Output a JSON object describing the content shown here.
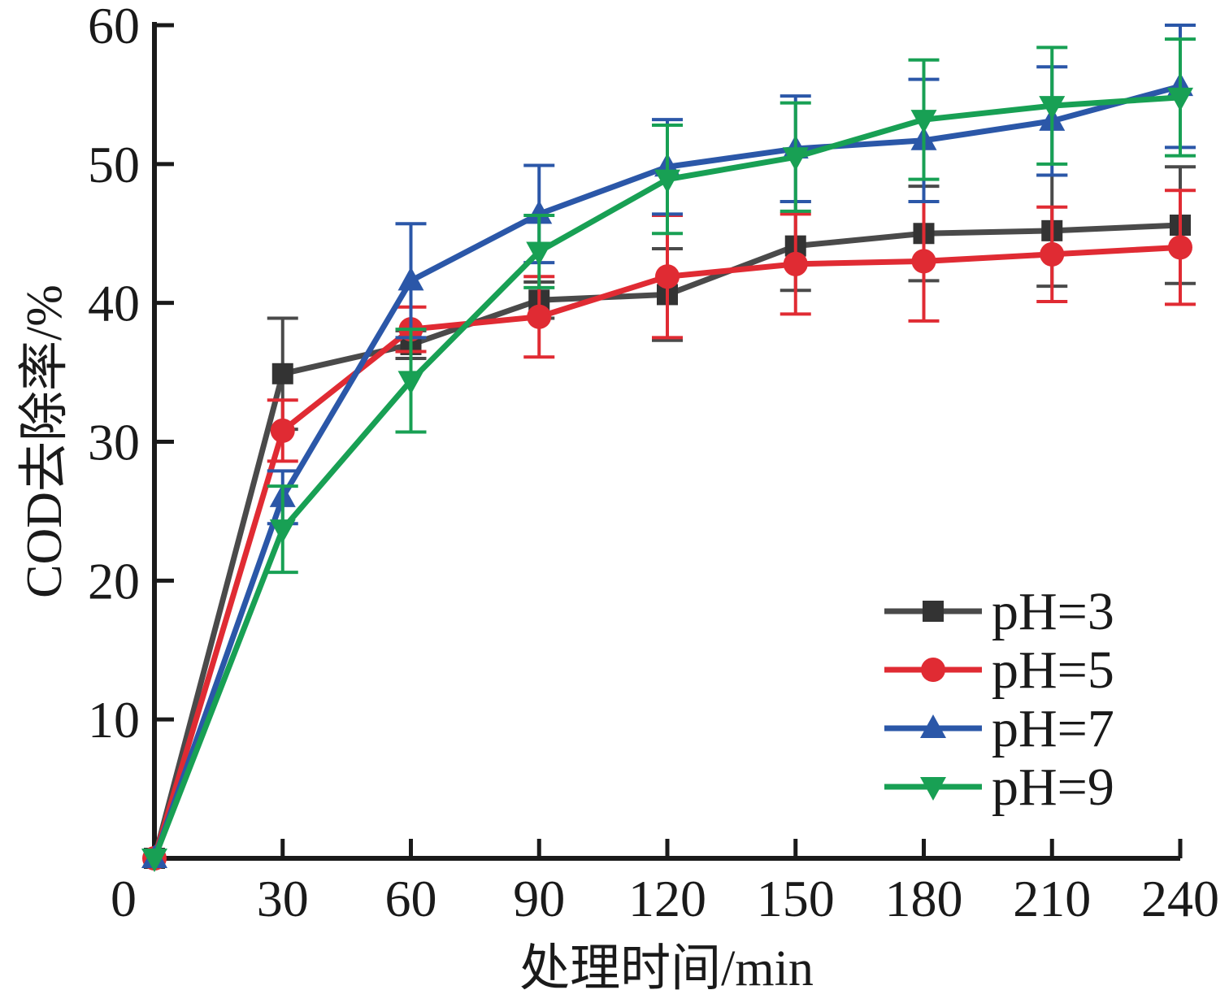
{
  "figure": {
    "background": "#ffffff",
    "text_color": "#1a1a1a",
    "axis_color": "#1a1a1a"
  },
  "chart_data": {
    "type": "line",
    "title": "",
    "xlabel": "处理时间/min",
    "ylabel": "COD去除率/%",
    "grid": false,
    "legend_position": "inside-lower-right",
    "xlim": [
      0,
      240
    ],
    "ylim": [
      0,
      60
    ],
    "xticks": [
      0,
      30,
      60,
      90,
      120,
      150,
      180,
      210,
      240
    ],
    "yticks": [
      10,
      20,
      30,
      40,
      50,
      60
    ],
    "x": [
      0,
      30,
      60,
      90,
      120,
      150,
      180,
      210,
      240
    ],
    "series": [
      {
        "name": "pH=3",
        "marker": "square",
        "color": "#4a4a4a",
        "marker_color": "#333333",
        "values": [
          0,
          34.9,
          37.0,
          40.2,
          40.6,
          44.1,
          45.0,
          45.2,
          45.6
        ],
        "errors": [
          0,
          4.0,
          1.0,
          1.3,
          3.3,
          3.2,
          3.4,
          4.0,
          4.2
        ]
      },
      {
        "name": "pH=5",
        "marker": "circle",
        "color": "#e02b33",
        "marker_color": "#e02b33",
        "values": [
          0,
          30.8,
          38.1,
          39.0,
          41.9,
          42.8,
          43.0,
          43.5,
          44.0
        ],
        "errors": [
          0,
          2.2,
          1.6,
          2.9,
          4.4,
          3.6,
          4.3,
          3.4,
          4.1
        ]
      },
      {
        "name": "pH=7",
        "marker": "triangle-up",
        "color": "#2b57a8",
        "marker_color": "#2b57a8",
        "values": [
          0,
          26.0,
          41.6,
          46.4,
          49.8,
          51.1,
          51.7,
          53.1,
          55.6
        ],
        "errors": [
          0,
          1.9,
          4.1,
          3.5,
          3.4,
          3.8,
          4.4,
          3.9,
          4.4
        ]
      },
      {
        "name": "pH=9",
        "marker": "triangle-down",
        "color": "#18a054",
        "marker_color": "#18a054",
        "values": [
          0,
          23.7,
          34.4,
          43.7,
          48.9,
          50.5,
          53.2,
          54.2,
          54.8
        ],
        "errors": [
          0,
          3.1,
          3.7,
          2.6,
          3.9,
          3.9,
          4.3,
          4.2,
          4.2
        ]
      }
    ]
  }
}
